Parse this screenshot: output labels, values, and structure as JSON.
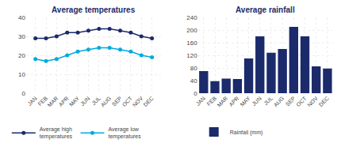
{
  "chart_data": [
    {
      "type": "line",
      "title": "Average temperatures",
      "categories": [
        "JAN",
        "FEB",
        "MAR",
        "APR",
        "MAY",
        "JUN",
        "JUL",
        "AUG",
        "SEP",
        "OCT",
        "NOV",
        "DEC"
      ],
      "series": [
        {
          "name": "Average high\ntemperatures",
          "color": "#1b2a6b",
          "values": [
            29,
            29,
            30,
            32,
            32,
            33,
            34,
            34,
            33,
            32,
            30,
            29
          ]
        },
        {
          "name": "Average low\ntemperatures",
          "color": "#00aadd",
          "values": [
            18,
            17,
            18,
            20,
            22,
            23,
            24,
            24,
            23,
            22,
            20,
            19
          ]
        }
      ],
      "ylim": [
        0,
        40
      ],
      "yticks": [
        0,
        10,
        20,
        30,
        40
      ],
      "grid": true,
      "marker": "circle",
      "legend": "bottom"
    },
    {
      "type": "bar",
      "title": "Average rainfall",
      "categories": [
        "JAN",
        "FEB",
        "MAR",
        "APR",
        "MAY",
        "JUN",
        "JUL",
        "AUG",
        "SEP",
        "OCT",
        "NOV",
        "DEC"
      ],
      "series": [
        {
          "name": "Rainfall (mm)",
          "color": "#1b2a6b",
          "values": [
            70,
            38,
            46,
            45,
            110,
            180,
            128,
            140,
            210,
            180,
            85,
            78
          ]
        }
      ],
      "ylim": [
        0,
        240
      ],
      "yticks": [
        0,
        40,
        80,
        120,
        160,
        200,
        240
      ],
      "grid": true,
      "legend": "bottom"
    }
  ]
}
